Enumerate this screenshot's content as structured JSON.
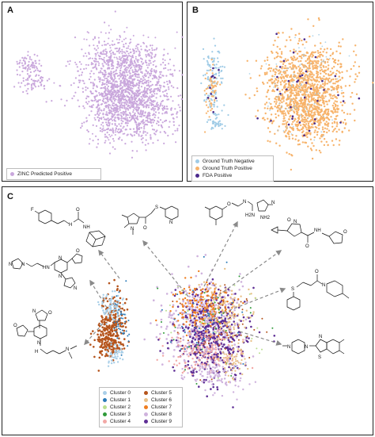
{
  "panels": {
    "a": {
      "letter": "A",
      "legend": [
        {
          "label": "ZINC Predicted Positive",
          "color": "#c9a7dc"
        }
      ]
    },
    "b": {
      "letter": "B",
      "legend": [
        {
          "label": "Ground Truth Negative",
          "color": "#9fcbe6"
        },
        {
          "label": "Ground Truth Positive",
          "color": "#f7b36b"
        },
        {
          "label": "FDA Positive",
          "color": "#4b2a8c"
        }
      ]
    },
    "c": {
      "letter": "C",
      "legend": [
        {
          "label": "Cluster 0",
          "color": "#a9cfe8"
        },
        {
          "label": "Cluster 1",
          "color": "#2a7ab8"
        },
        {
          "label": "Cluster 2",
          "color": "#b9df8f"
        },
        {
          "label": "Cluster 3",
          "color": "#2f9a3a"
        },
        {
          "label": "Cluster 4",
          "color": "#f2a8a6"
        },
        {
          "label": "Cluster 5",
          "color": "#b5541c"
        },
        {
          "label": "Cluster 6",
          "color": "#e8c087"
        },
        {
          "label": "Cluster 7",
          "color": "#ef7d1f"
        },
        {
          "label": "Cluster 8",
          "color": "#cfb2dd"
        },
        {
          "label": "Cluster 9",
          "color": "#5f2f96"
        }
      ]
    }
  },
  "atoms": {
    "F": "F",
    "O": "O",
    "N": "N",
    "NH": "NH",
    "HN": "HN",
    "H": "H",
    "S": "S",
    "NH2": "NH2",
    "H2N": "H2N",
    "H2N_2": "H2N"
  }
}
